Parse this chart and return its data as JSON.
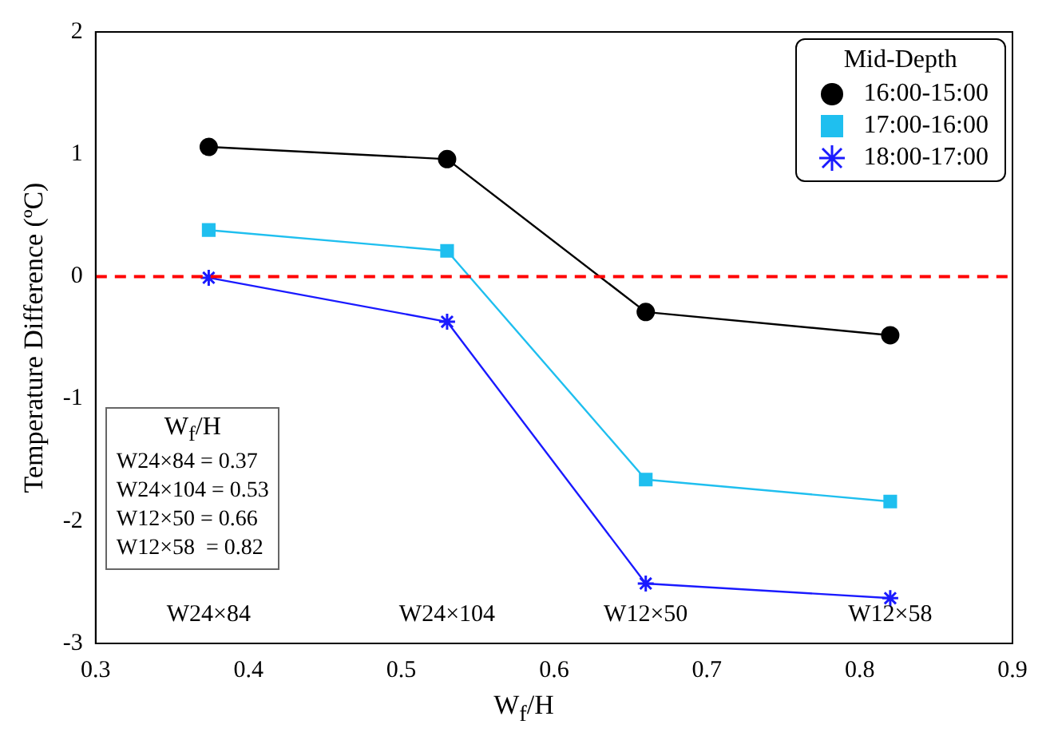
{
  "chart_data": {
    "type": "line",
    "xlabel": "W$_{f}$/H",
    "ylabel": "Temperature Difference (ºC)",
    "legend_title": "Mid-Depth",
    "legend": "top right",
    "grid": false,
    "line_style": "solid",
    "x": [
      0.374,
      0.53,
      0.66,
      0.82
    ],
    "xlim": [
      0.3,
      0.9
    ],
    "xticks": [
      0.3,
      0.4,
      0.5,
      0.6,
      0.7,
      0.8,
      0.9
    ],
    "ylim": [
      -3,
      2
    ],
    "yticks": [
      -3,
      -2,
      -1,
      0,
      1,
      2
    ],
    "series": [
      {
        "name": "16:00-15:00",
        "color": "#000000",
        "marker": "circle",
        "values": [
          1.06,
          0.96,
          -0.29,
          -0.48
        ]
      },
      {
        "name": "17:00-16:00",
        "color": "#1fbfef",
        "marker": "square",
        "values": [
          0.38,
          0.21,
          -1.66,
          -1.84
        ]
      },
      {
        "name": "18:00-17:00",
        "color": "#1a1aff",
        "marker": "cross",
        "values": [
          -0.01,
          -0.37,
          -2.51,
          -2.63
        ]
      }
    ],
    "ref_lines": [
      {
        "axis": "y",
        "value": 0,
        "color": "#ff0000",
        "line_style": "dashed"
      }
    ],
    "annotations": [
      "W24×84",
      "W24×104",
      "W12×50",
      "W12×58",
      "W$_{f}$/H",
      "W24×84 = 0.37",
      "W24×104 = 0.53",
      "W12×50 = 0.66",
      "W12×58  = 0.82"
    ]
  }
}
